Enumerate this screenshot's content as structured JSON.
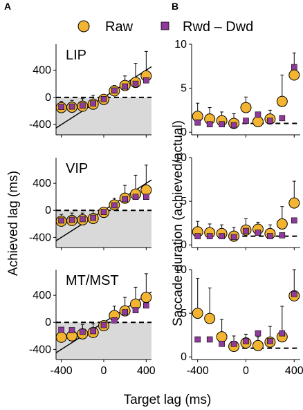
{
  "panel_letters": [
    "A",
    "B"
  ],
  "legend": {
    "raw_label": "Raw",
    "rwd_label": "Rwd – Dwd"
  },
  "colors": {
    "raw": "#f2b431",
    "rwd": "#8e3b9c",
    "shade": "#d9d9d9",
    "line": "#000000"
  },
  "axis_labels": {
    "x": "Target lag (ms)",
    "y_left": "Achieved lag (ms)",
    "y_right": "Saccade duration (achieved/actual)"
  },
  "chart_data": [
    {
      "type": "scatter",
      "panel": "A",
      "title": "LIP",
      "xlim": [
        -450,
        450
      ],
      "ylim": [
        -550,
        780
      ],
      "xticks": [
        -400,
        0,
        400
      ],
      "yticks": [
        400,
        0,
        -400
      ],
      "x": [
        -400,
        -300,
        -200,
        -100,
        0,
        100,
        200,
        300,
        400
      ],
      "series": [
        {
          "name": "Raw",
          "values": [
            -150,
            -145,
            -130,
            -100,
            -30,
            95,
            175,
            220,
            315
          ],
          "err_hi": [
            90,
            100,
            110,
            130,
            50,
            80,
            140,
            280,
            360
          ]
        },
        {
          "name": "Rwd – Dwd",
          "values": [
            -140,
            -135,
            -120,
            -90,
            -25,
            100,
            160,
            200,
            250
          ],
          "err_hi": [
            0,
            0,
            0,
            0,
            0,
            0,
            0,
            0,
            0
          ]
        }
      ],
      "shaded_region": "below zero",
      "dashed_line": 0
    },
    {
      "type": "scatter",
      "panel": "A",
      "title": "VIP",
      "xlim": [
        -450,
        450
      ],
      "ylim": [
        -550,
        780
      ],
      "xticks": [
        -400,
        0,
        400
      ],
      "yticks": [
        400,
        0,
        -400
      ],
      "x": [
        -400,
        -300,
        -200,
        -100,
        0,
        100,
        200,
        300,
        400
      ],
      "series": [
        {
          "name": "Raw",
          "values": [
            -160,
            -150,
            -140,
            -120,
            -30,
            80,
            180,
            240,
            300
          ],
          "err_hi": [
            100,
            110,
            100,
            120,
            70,
            100,
            190,
            280,
            370
          ]
        },
        {
          "name": "Rwd – Dwd",
          "values": [
            -150,
            -140,
            -130,
            -110,
            -25,
            75,
            165,
            200,
            200
          ],
          "err_hi": [
            0,
            0,
            0,
            0,
            0,
            0,
            0,
            0,
            0
          ]
        }
      ],
      "shaded_region": "below zero",
      "dashed_line": 0
    },
    {
      "type": "scatter",
      "panel": "A",
      "title": "MT/MST",
      "xlim": [
        -450,
        450
      ],
      "ylim": [
        -550,
        780
      ],
      "xticks": [
        -400,
        0,
        400
      ],
      "yticks": [
        400,
        0,
        -400
      ],
      "x": [
        -400,
        -300,
        -200,
        -100,
        0,
        100,
        200,
        300,
        400
      ],
      "series": [
        {
          "name": "Raw",
          "values": [
            -220,
            -200,
            -170,
            -150,
            -50,
            100,
            170,
            270,
            370
          ],
          "err_hi": [
            130,
            110,
            140,
            130,
            60,
            140,
            200,
            250,
            350
          ]
        },
        {
          "name": "Rwd – Dwd",
          "values": [
            -110,
            -115,
            -140,
            -130,
            -40,
            30,
            150,
            180,
            250
          ],
          "err_hi": [
            0,
            0,
            0,
            0,
            0,
            0,
            0,
            0,
            0
          ]
        }
      ],
      "shaded_region": "below zero",
      "dashed_line": 0
    },
    {
      "type": "scatter",
      "panel": "B",
      "xlim": [
        -450,
        450
      ],
      "ylim": [
        -0.3,
        10
      ],
      "xticks": [
        -400,
        0,
        400
      ],
      "yticks": [
        10,
        5,
        0
      ],
      "x": [
        -400,
        -300,
        -200,
        -100,
        0,
        100,
        200,
        300,
        400
      ],
      "series": [
        {
          "name": "Raw",
          "values": [
            1.8,
            1.5,
            1.3,
            1.0,
            2.8,
            1.2,
            1.5,
            3.5,
            6.5
          ],
          "err_hi": [
            1.5,
            1.3,
            1.0,
            1.1,
            1.2,
            0.5,
            1.0,
            3.0,
            2.5
          ]
        },
        {
          "name": "Rwd – Dwd",
          "values": [
            1.1,
            0.9,
            0.9,
            0.8,
            1.3,
            2.0,
            1.3,
            1.6,
            7.4
          ],
          "err_hi": [
            0,
            0,
            0,
            0,
            0,
            0,
            0,
            0,
            0
          ]
        }
      ],
      "dashed_line": 1
    },
    {
      "type": "scatter",
      "panel": "B",
      "xlim": [
        -450,
        450
      ],
      "ylim": [
        -0.3,
        10
      ],
      "xticks": [
        -400,
        0,
        400
      ],
      "yticks": [
        10,
        5,
        0
      ],
      "x": [
        -400,
        -300,
        -200,
        -100,
        0,
        100,
        200,
        300,
        400
      ],
      "series": [
        {
          "name": "Raw",
          "values": [
            1.5,
            1.4,
            1.3,
            1.0,
            1.7,
            1.8,
            1.3,
            2.4,
            4.8
          ],
          "err_hi": [
            1.2,
            1.0,
            1.0,
            1.0,
            1.3,
            0.8,
            1.0,
            2.0,
            2.5
          ]
        },
        {
          "name": "Rwd – Dwd",
          "values": [
            1.0,
            1.0,
            1.0,
            0.9,
            1.6,
            1.4,
            1.0,
            1.1,
            2.8
          ],
          "err_hi": [
            0,
            0,
            0,
            0,
            0,
            0,
            0,
            0,
            0
          ]
        }
      ],
      "dashed_line": 1
    },
    {
      "type": "scatter",
      "panel": "B",
      "xlim": [
        -450,
        450
      ],
      "ylim": [
        -0.3,
        10
      ],
      "xticks": [
        -400,
        0,
        400
      ],
      "yticks": [
        10,
        5,
        0
      ],
      "x": [
        -400,
        -300,
        -200,
        -100,
        0,
        100,
        200,
        300,
        400
      ],
      "series": [
        {
          "name": "Raw",
          "values": [
            5.0,
            4.4,
            2.3,
            1.2,
            1.6,
            1.3,
            1.7,
            2.3,
            7.0
          ],
          "err_hi": [
            4.0,
            3.5,
            2.0,
            1.2,
            1.0,
            1.0,
            1.8,
            3.5,
            3.0
          ]
        },
        {
          "name": "Rwd – Dwd",
          "values": [
            2.0,
            2.0,
            1.5,
            1.5,
            1.8,
            2.7,
            1.8,
            2.7,
            7.2
          ],
          "err_hi": [
            0,
            0,
            0,
            0,
            0,
            0,
            0,
            0,
            0
          ]
        }
      ],
      "dashed_line": 1
    }
  ]
}
